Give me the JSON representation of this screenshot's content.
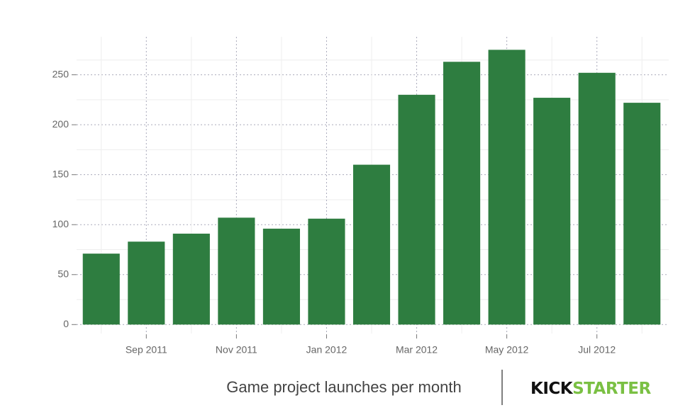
{
  "chart_data": {
    "type": "bar",
    "caption": "Game project launches per month",
    "logo": {
      "first": "KICK",
      "second": "STARTER"
    },
    "categories": [
      null,
      "Sep 2011",
      null,
      "Nov 2011",
      null,
      "Jan 2012",
      null,
      "Mar 2012",
      null,
      "May 2012",
      null,
      "Jul 2012",
      null
    ],
    "values": [
      71,
      83,
      91,
      107,
      96,
      106,
      160,
      230,
      263,
      275,
      227,
      252,
      222
    ],
    "color": "#2e7d40",
    "ylim": [
      -9,
      288
    ],
    "yticks": [
      0,
      50,
      100,
      150,
      200,
      250
    ],
    "grid": true
  }
}
